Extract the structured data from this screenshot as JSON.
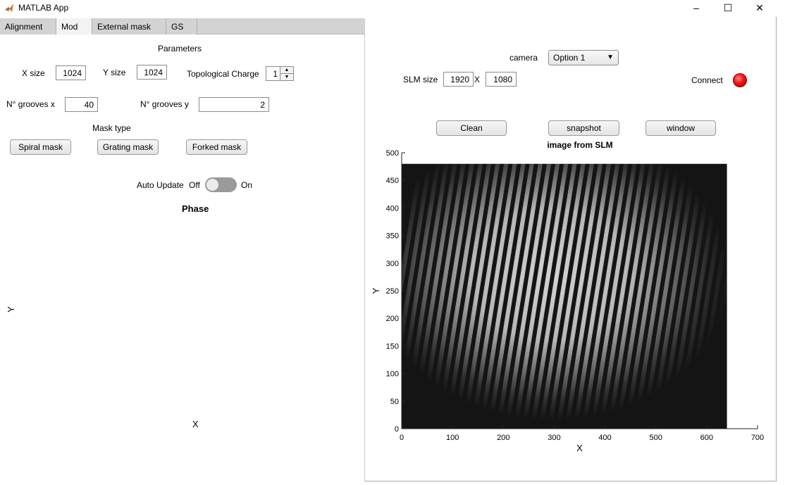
{
  "window": {
    "title": "MATLAB App",
    "controls": {
      "minimize": "–",
      "maximize": "☐",
      "close": "✕"
    }
  },
  "tabs": [
    {
      "label": "Alignment",
      "active": false
    },
    {
      "label": "Mod",
      "active": true
    },
    {
      "label": "External mask",
      "active": false
    },
    {
      "label": "GS",
      "active": false
    }
  ],
  "mod": {
    "parameters_heading": "Parameters",
    "x_size_label": "X size",
    "x_size_value": "1024",
    "y_size_label": "Y size",
    "y_size_value": "1024",
    "topological_charge_label": "Topological Charge",
    "topological_charge_value": "1",
    "grooves_x_label": "N° grooves x",
    "grooves_x_value": "40",
    "grooves_y_label": "N° grooves y",
    "grooves_y_value": "2",
    "mask_type_heading": "Mask type",
    "spiral_mask_label": "Spiral mask",
    "grating_mask_label": "Grating mask",
    "forked_mask_label": "Forked mask",
    "auto_update_label": "Auto Update",
    "toggle_off_label": "Off",
    "toggle_on_label": "On",
    "phase_title": "Phase",
    "phase_ylabel": "Y",
    "phase_xlabel": "X"
  },
  "right": {
    "camera_label": "camera",
    "camera_selected": "Option 1",
    "slm_size_label": "SLM size",
    "slm_width": "1920",
    "slm_times": "X",
    "slm_height": "1080",
    "connect_label": "Connect",
    "clean_label": "Clean",
    "snapshot_label": "snapshot",
    "window_label": "window",
    "status_color": "#e81010"
  },
  "chart_data": {
    "type": "heatmap",
    "title": "image from SLM",
    "xlabel": "X",
    "ylabel": "Y",
    "xlim": [
      0,
      700
    ],
    "ylim": [
      0,
      500
    ],
    "x_ticks": [
      0,
      100,
      200,
      300,
      400,
      500,
      600,
      700
    ],
    "y_ticks": [
      0,
      50,
      100,
      150,
      200,
      250,
      300,
      350,
      400,
      450,
      500
    ],
    "image_extent": {
      "x": [
        0,
        640
      ],
      "y": [
        0,
        480
      ]
    },
    "colormap": "gray",
    "description_values": {
      "fringe_count": 40
    }
  }
}
